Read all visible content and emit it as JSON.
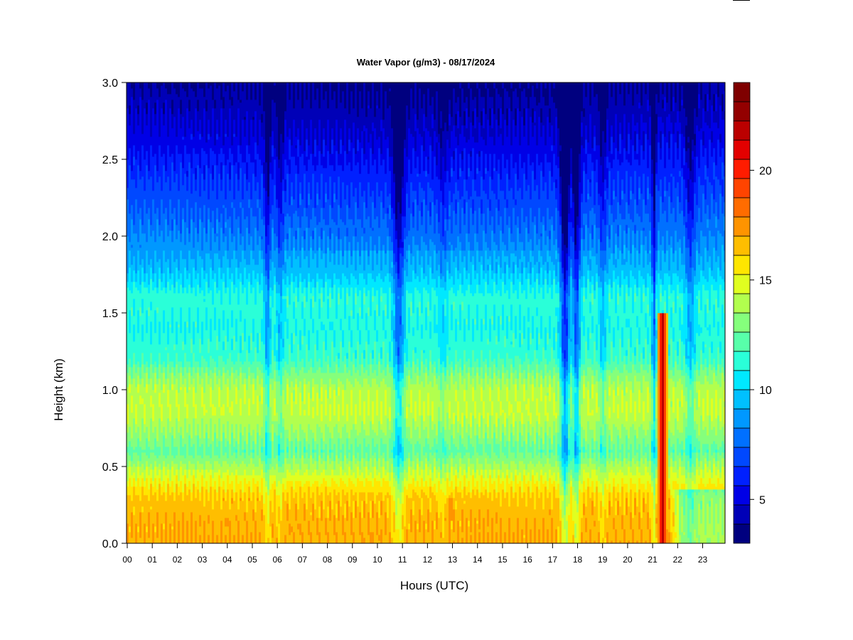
{
  "chart_data": {
    "type": "heatmap",
    "title": "Water Vapor (g/m3) - 08/17/2024",
    "xlabel": "Hours (UTC)",
    "ylabel": "Height (km)",
    "xlim": [
      0,
      24
    ],
    "ylim": [
      0.0,
      3.0
    ],
    "x_ticks": [
      "00",
      "01",
      "02",
      "03",
      "04",
      "05",
      "06",
      "07",
      "08",
      "09",
      "10",
      "11",
      "12",
      "13",
      "14",
      "15",
      "16",
      "17",
      "18",
      "19",
      "20",
      "21",
      "22",
      "23"
    ],
    "y_ticks": [
      "0.0",
      "0.5",
      "1.0",
      "1.5",
      "2.0",
      "2.5",
      "3.0"
    ],
    "colorbar": {
      "range": [
        3,
        24
      ],
      "ticks": [
        "5",
        "10",
        "15",
        "20"
      ],
      "tick_values": [
        5,
        10,
        15,
        20
      ],
      "colors": [
        "#00007f",
        "#0000b7",
        "#0000e6",
        "#0020ff",
        "#0048ff",
        "#0070ff",
        "#0098ff",
        "#00c0ff",
        "#00e8ff",
        "#2affd8",
        "#58ffaa",
        "#85ff7c",
        "#b2ff4e",
        "#e0ff20",
        "#ffe600",
        "#ffbe00",
        "#ff9400",
        "#ff6c00",
        "#ff4400",
        "#ff1c00",
        "#e30000",
        "#bb0000",
        "#930000",
        "#7f0000"
      ]
    },
    "height_profile": [
      {
        "height": 0.0,
        "value": 16.9
      },
      {
        "height": 0.15,
        "value": 16.8
      },
      {
        "height": 0.3,
        "value": 16.3
      },
      {
        "height": 0.4,
        "value": 15.2
      },
      {
        "height": 0.5,
        "value": 13.8
      },
      {
        "height": 0.6,
        "value": 12.3
      },
      {
        "height": 0.7,
        "value": 13.2
      },
      {
        "height": 0.85,
        "value": 14.3
      },
      {
        "height": 1.0,
        "value": 14.1
      },
      {
        "height": 1.1,
        "value": 13.0
      },
      {
        "height": 1.2,
        "value": 11.6
      },
      {
        "height": 1.4,
        "value": 11.0
      },
      {
        "height": 1.6,
        "value": 11.3
      },
      {
        "height": 1.8,
        "value": 9.4
      },
      {
        "height": 2.0,
        "value": 8.3
      },
      {
        "height": 2.2,
        "value": 7.3
      },
      {
        "height": 2.4,
        "value": 6.4
      },
      {
        "height": 2.6,
        "value": 5.4
      },
      {
        "height": 2.8,
        "value": 4.6
      },
      {
        "height": 3.0,
        "value": 3.9
      }
    ],
    "dry_intrusions": [
      {
        "hour": 5.6,
        "width": 0.12,
        "depth": 2.5
      },
      {
        "hour": 6.1,
        "width": 0.15,
        "depth": 1.5
      },
      {
        "hour": 10.85,
        "width": 0.22,
        "depth": 3.5
      },
      {
        "hour": 12.6,
        "width": 0.2,
        "depth": 1.0
      },
      {
        "hour": 17.5,
        "width": 0.18,
        "depth": 5.0
      },
      {
        "hour": 17.95,
        "width": 0.15,
        "depth": 4.0
      },
      {
        "hour": 19.0,
        "width": 0.15,
        "depth": 1.5
      },
      {
        "hour": 21.05,
        "width": 0.08,
        "depth": 3.5
      },
      {
        "hour": 22.5,
        "width": 0.2,
        "depth": 2.0
      }
    ],
    "moist_features": [
      {
        "hour": 21.4,
        "height_from": 0.0,
        "height_to": 1.5,
        "value": 22.5
      },
      {
        "hour": 12.9,
        "height_from": 0.15,
        "height_to": 0.3,
        "value": 18.0
      },
      {
        "hour": 4.0,
        "height_from": 0.12,
        "height_to": 0.16,
        "value": 17.8
      }
    ]
  }
}
